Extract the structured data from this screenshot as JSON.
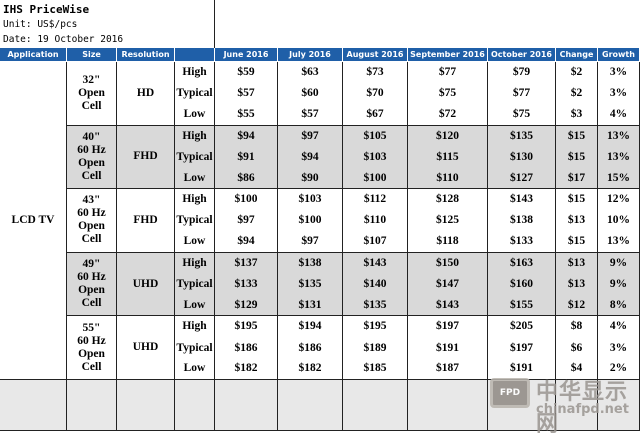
{
  "header": {
    "title": "IHS PriceWise",
    "unit": "Unit: US$/pcs",
    "date": "Date: 19 October 2016"
  },
  "table": {
    "columns": [
      "Application",
      "Size",
      "Resolution",
      "June 2016",
      "July 2016",
      "August 2016",
      "September 2016",
      "October 2016",
      "Change",
      "Growth"
    ],
    "application": "LCD TV",
    "groups": [
      {
        "size": "32\"\nOpen\nCell",
        "resolution": "HD",
        "rows": [
          {
            "level": "High",
            "values": [
              "$59",
              "$63",
              "$73",
              "$77",
              "$79",
              "$2",
              "3%"
            ]
          },
          {
            "level": "Typical",
            "values": [
              "$57",
              "$60",
              "$70",
              "$75",
              "$77",
              "$2",
              "3%"
            ]
          },
          {
            "level": "Low",
            "values": [
              "$55",
              "$57",
              "$67",
              "$72",
              "$75",
              "$3",
              "4%"
            ]
          }
        ]
      },
      {
        "size": "40\"\n60 Hz\nOpen\nCell",
        "resolution": "FHD",
        "rows": [
          {
            "level": "High",
            "values": [
              "$94",
              "$97",
              "$105",
              "$120",
              "$135",
              "$15",
              "13%"
            ]
          },
          {
            "level": "Typical",
            "values": [
              "$91",
              "$94",
              "$103",
              "$115",
              "$130",
              "$15",
              "13%"
            ]
          },
          {
            "level": "Low",
            "values": [
              "$86",
              "$90",
              "$100",
              "$110",
              "$127",
              "$17",
              "15%"
            ]
          }
        ]
      },
      {
        "size": "43\"\n60 Hz\nOpen\nCell",
        "resolution": "FHD",
        "rows": [
          {
            "level": "High",
            "values": [
              "$100",
              "$103",
              "$112",
              "$128",
              "$143",
              "$15",
              "12%"
            ]
          },
          {
            "level": "Typical",
            "values": [
              "$97",
              "$100",
              "$110",
              "$125",
              "$138",
              "$13",
              "10%"
            ]
          },
          {
            "level": "Low",
            "values": [
              "$94",
              "$97",
              "$107",
              "$118",
              "$133",
              "$15",
              "13%"
            ]
          }
        ]
      },
      {
        "size": "49\"\n60 Hz\nOpen\nCell",
        "resolution": "UHD",
        "rows": [
          {
            "level": "High",
            "values": [
              "$137",
              "$138",
              "$143",
              "$150",
              "$163",
              "$13",
              "9%"
            ]
          },
          {
            "level": "Typical",
            "values": [
              "$133",
              "$135",
              "$140",
              "$147",
              "$160",
              "$13",
              "9%"
            ]
          },
          {
            "level": "Low",
            "values": [
              "$129",
              "$131",
              "$135",
              "$143",
              "$155",
              "$12",
              "8%"
            ]
          }
        ]
      },
      {
        "size": "55\"\n60 Hz\nOpen\nCell",
        "resolution": "UHD",
        "rows": [
          {
            "level": "High",
            "values": [
              "$195",
              "$194",
              "$195",
              "$197",
              "$205",
              "$8",
              "4%"
            ]
          },
          {
            "level": "Typical",
            "values": [
              "$186",
              "$186",
              "$189",
              "$191",
              "$197",
              "$6",
              "3%"
            ]
          },
          {
            "level": "Low",
            "values": [
              "$182",
              "$182",
              "$185",
              "$187",
              "$191",
              "$4",
              "2%"
            ]
          }
        ]
      }
    ]
  },
  "watermark": {
    "logo": "FPD",
    "brand": "中华显示网",
    "url": "chinafpd.net"
  }
}
